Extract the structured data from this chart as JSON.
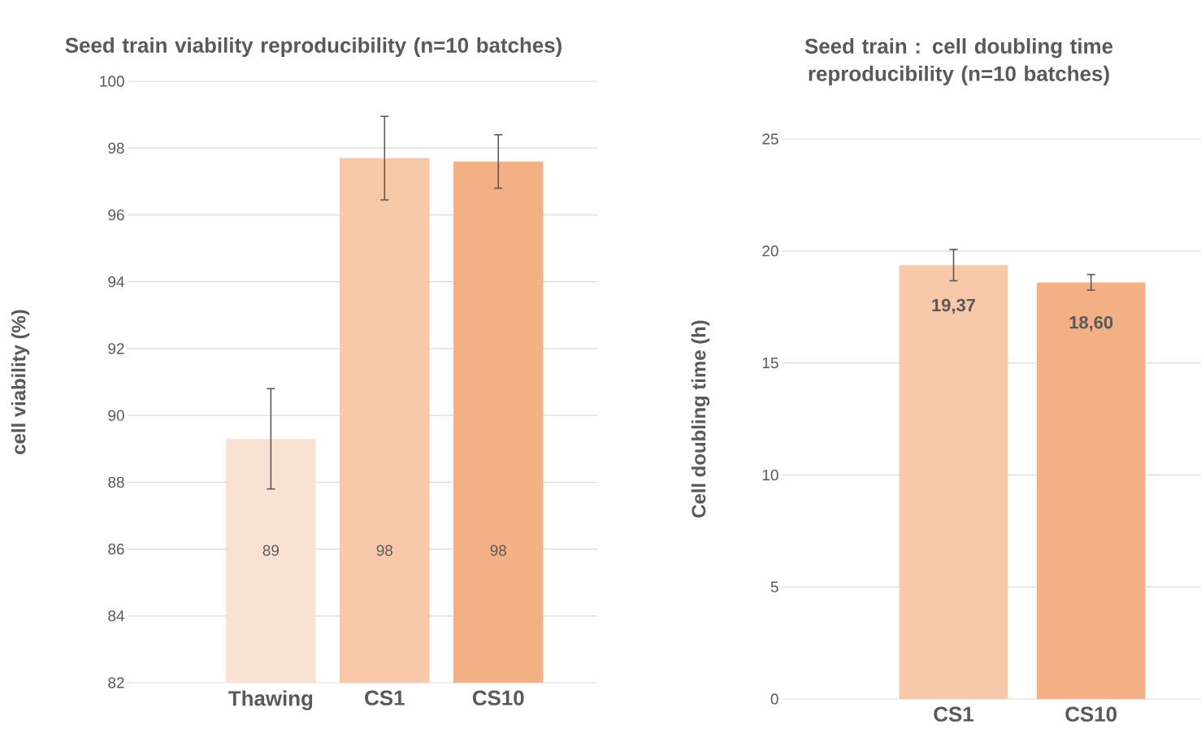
{
  "chart_data": [
    {
      "type": "bar",
      "title": "Seed train viability reproducibility (n=10 batches)",
      "ylabel": "cell viability (%)",
      "categories": [
        "Thawing",
        "CS1",
        "CS10"
      ],
      "values": [
        89.3,
        97.7,
        97.6
      ],
      "colors": [
        "#f9e2d3",
        "#f7c8a9",
        "#f3b084"
      ],
      "errors": [
        1.5,
        1.25,
        0.8
      ],
      "value_labels": [
        "89",
        "98",
        "98"
      ],
      "ylim": [
        82,
        100
      ],
      "yticks": [
        82,
        84,
        86,
        88,
        90,
        92,
        94,
        96,
        98,
        100
      ],
      "grid": "y"
    },
    {
      "type": "bar",
      "title": "Seed train : cell doubling time reproducibility (n=10 batches)",
      "ylabel": "Cell doubling time (h)",
      "categories": [
        "CS1",
        "CS10"
      ],
      "values": [
        19.37,
        18.6
      ],
      "colors": [
        "#f7c8a9",
        "#f3b084"
      ],
      "errors": [
        0.7,
        0.35
      ],
      "value_labels": [
        "19,37",
        "18,60"
      ],
      "ylim": [
        0,
        25
      ],
      "yticks": [
        0,
        5,
        10,
        15,
        20,
        25
      ],
      "grid": "y"
    }
  ]
}
